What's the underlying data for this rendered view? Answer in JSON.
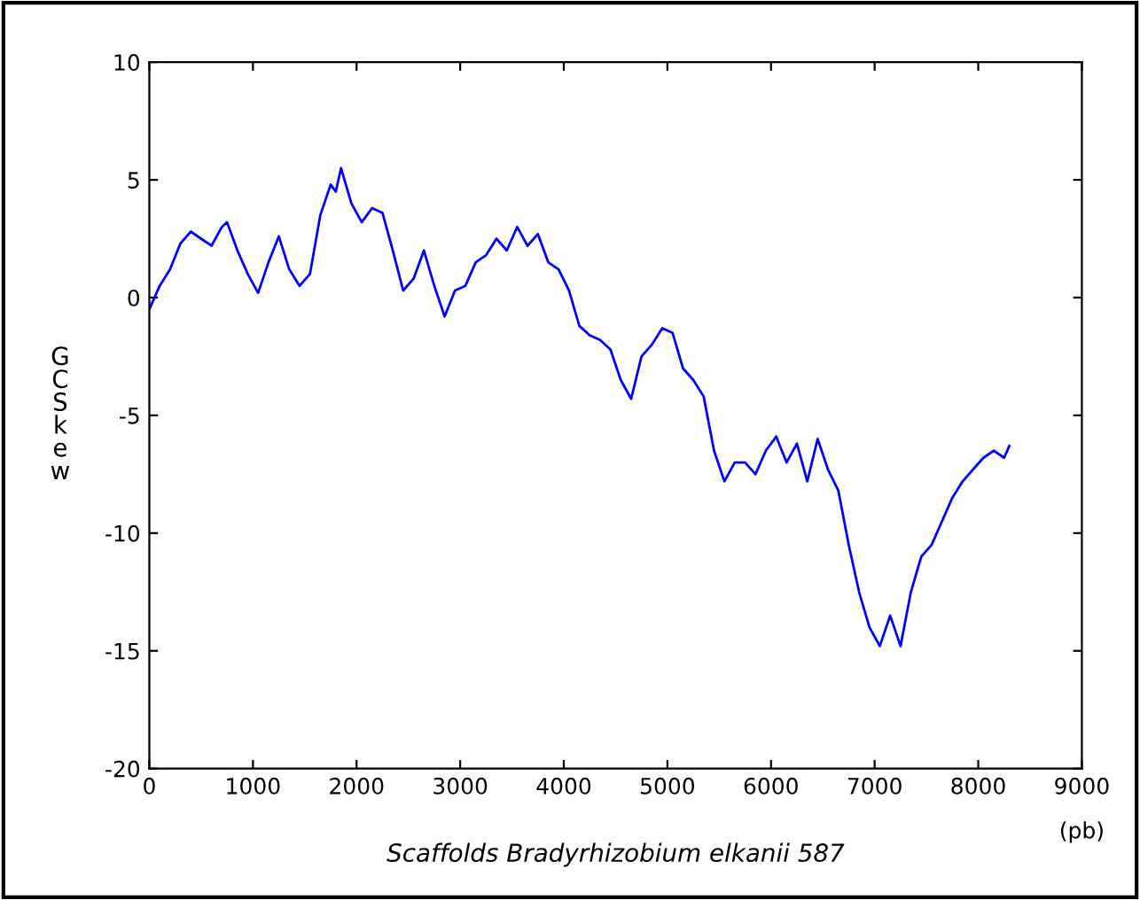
{
  "chart_data": {
    "type": "line",
    "xlabel": "Scaffolds Bradyrhizobium elkanii 587",
    "ylabel": "GC Skew",
    "annotations": [
      "(pb)"
    ],
    "xlim": [
      0,
      9000
    ],
    "xticks": [
      0,
      1000,
      2000,
      3000,
      4000,
      5000,
      6000,
      7000,
      8000,
      9000
    ],
    "ylim": [
      -20,
      10
    ],
    "yticks": [
      -20,
      -15,
      -10,
      -5,
      0,
      5,
      10
    ],
    "grid": false,
    "marker": "none",
    "line_style": "solid",
    "series": [
      {
        "color": "#0000ff",
        "x": [
          0,
          100,
          200,
          300,
          400,
          500,
          600,
          700,
          750,
          850,
          950,
          1050,
          1150,
          1250,
          1350,
          1450,
          1550,
          1650,
          1750,
          1800,
          1850,
          1950,
          2050,
          2150,
          2250,
          2350,
          2450,
          2550,
          2650,
          2750,
          2850,
          2950,
          3050,
          3150,
          3250,
          3350,
          3450,
          3550,
          3650,
          3750,
          3850,
          3950,
          4050,
          4150,
          4250,
          4350,
          4450,
          4550,
          4650,
          4750,
          4850,
          4950,
          5050,
          5150,
          5250,
          5350,
          5450,
          5550,
          5650,
          5750,
          5850,
          5950,
          6050,
          6150,
          6250,
          6350,
          6450,
          6550,
          6650,
          6750,
          6850,
          6950,
          7050,
          7150,
          7250,
          7350,
          7450,
          7550,
          7650,
          7750,
          7850,
          7950,
          8050,
          8150,
          8250,
          8300
        ],
        "values": [
          -0.5,
          0.5,
          1.2,
          2.3,
          2.8,
          2.5,
          2.2,
          3.0,
          3.2,
          2.0,
          1.0,
          0.2,
          1.5,
          2.6,
          1.2,
          0.5,
          1.0,
          3.5,
          4.8,
          4.5,
          5.5,
          4.0,
          3.2,
          3.8,
          3.6,
          2.0,
          0.3,
          0.8,
          2.0,
          0.5,
          -0.8,
          0.3,
          0.5,
          1.5,
          1.8,
          2.5,
          2.0,
          3.0,
          2.2,
          2.7,
          1.5,
          1.2,
          0.3,
          -1.2,
          -1.6,
          -1.8,
          -2.2,
          -3.5,
          -4.3,
          -2.5,
          -2.0,
          -1.3,
          -1.5,
          -3.0,
          -3.5,
          -4.2,
          -6.5,
          -7.8,
          -7.0,
          -7.0,
          -7.5,
          -6.5,
          -5.9,
          -7.0,
          -6.2,
          -7.8,
          -6.0,
          -7.3,
          -8.2,
          -10.5,
          -12.5,
          -14.0,
          -14.8,
          -13.5,
          -14.8,
          -12.5,
          -11.0,
          -10.5,
          -9.5,
          -8.5,
          -7.8,
          -7.3,
          -6.8,
          -6.5,
          -6.8,
          -6.3
        ]
      }
    ]
  }
}
